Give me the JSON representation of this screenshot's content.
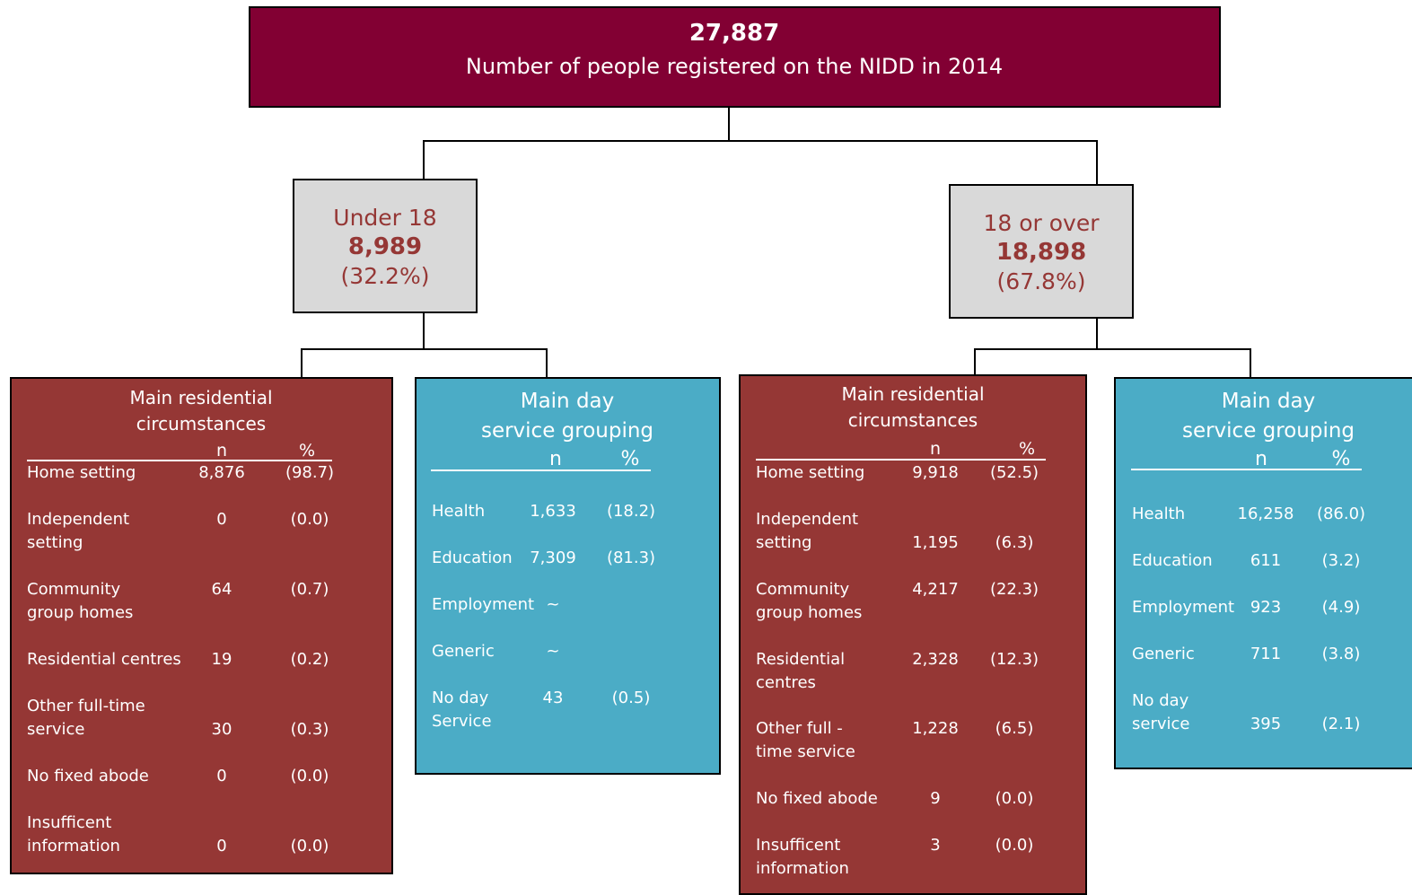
{
  "root": {
    "count": "27,887",
    "label": "Number of people registered on the NIDD in 2014"
  },
  "groups": [
    {
      "label": "Under 18",
      "count": "8,989",
      "share": "(32.2%)",
      "residential": {
        "title": "Main residential\ncircumstances",
        "n": "n",
        "pct": "%",
        "rows": [
          {
            "label": "Home setting",
            "n": "8,876",
            "pct": "(98.7)"
          },
          {
            "label": "Independent\nsetting",
            "n": "0",
            "pct": "(0.0)"
          },
          {
            "label": "Community\ngroup homes",
            "n": "64",
            "pct": "(0.7)"
          },
          {
            "label": "Residential centres",
            "n": "19",
            "pct": "(0.2)"
          },
          {
            "label": "Other full-time\nservice",
            "n": "30",
            "pct": "(0.3)"
          },
          {
            "label": "No fixed abode",
            "n": "0",
            "pct": "(0.0)"
          },
          {
            "label": "Insufficent\ninformation",
            "n": "0",
            "pct": "(0.0)"
          }
        ]
      },
      "day": {
        "title": "Main day\nservice grouping",
        "n": "n",
        "pct": "%",
        "rows": [
          {
            "label": "Health",
            "n": "1,633",
            "pct": "(18.2)"
          },
          {
            "label": "Education",
            "n": "7,309",
            "pct": "(81.3)"
          },
          {
            "label": "Employment",
            "n": "~"
          },
          {
            "label": "Generic",
            "n": "~"
          },
          {
            "label": "No day\nService",
            "n": "43",
            "pct": "(0.5)"
          }
        ]
      }
    },
    {
      "label": "18 or over",
      "count": "18,898",
      "share": "(67.8%)",
      "residential": {
        "title": "Main residential\ncircumstances",
        "n": "n",
        "pct": "%",
        "rows": [
          {
            "label": "Home setting",
            "n": "9,918",
            "pct": "(52.5)"
          },
          {
            "label": "Independent\nsetting",
            "n": "1,195",
            "pct": "(6.3)"
          },
          {
            "label": "Community\ngroup homes",
            "n": "4,217",
            "pct": "(22.3)"
          },
          {
            "label": "Residential\ncentres",
            "n": "2,328",
            "pct": "(12.3)"
          },
          {
            "label": "Other full -\ntime service",
            "n": "1,228",
            "pct": "(6.5)"
          },
          {
            "label": "No fixed abode",
            "n": "9",
            "pct": "(0.0)"
          },
          {
            "label": "Insufficent\ninformation",
            "n": "3",
            "pct": "(0.0)"
          }
        ]
      },
      "day": {
        "title": "Main day\nservice grouping",
        "n": "n",
        "pct": "%",
        "rows": [
          {
            "label": "Health",
            "n": "16,258",
            "pct": "(86.0)"
          },
          {
            "label": "Education",
            "n": "611",
            "pct": "(3.2)"
          },
          {
            "label": "Employment",
            "n": "923",
            "pct": "(4.9)"
          },
          {
            "label": "Generic",
            "n": "711",
            "pct": "(3.8)"
          },
          {
            "label": "No day\nservice",
            "n": "395",
            "pct": "(2.1)"
          }
        ]
      }
    }
  ]
}
